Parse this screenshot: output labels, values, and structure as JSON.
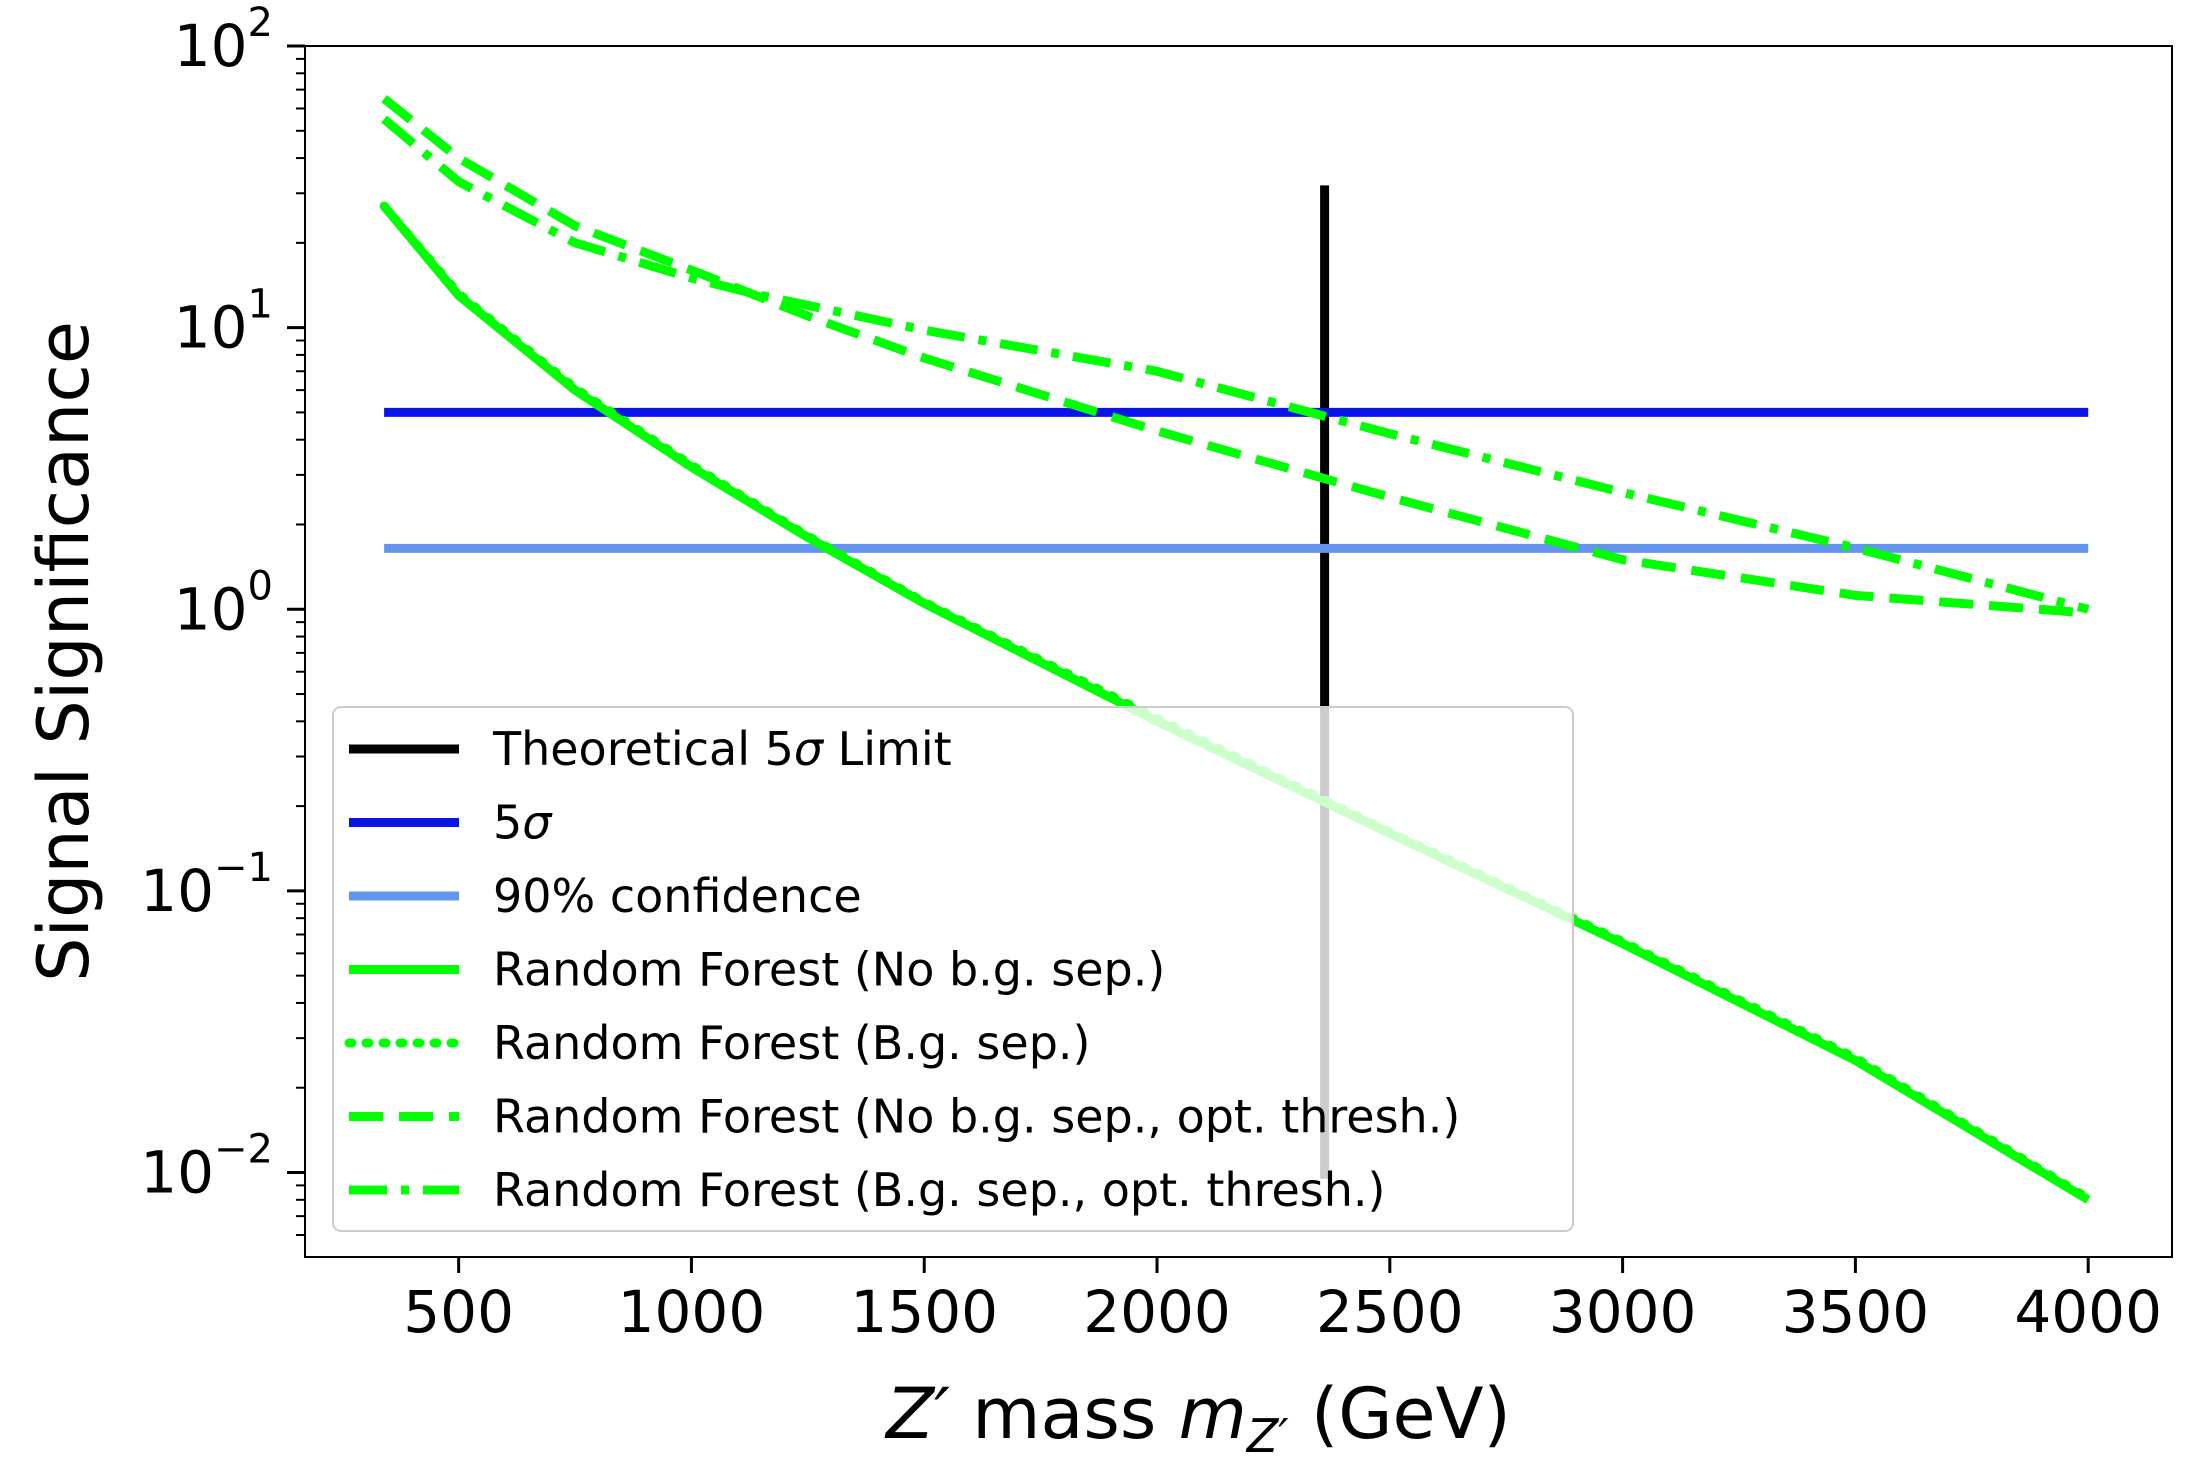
{
  "chart_data": {
    "type": "line",
    "title": "",
    "xlabel_parts": {
      "prefix": "Z′",
      "middle": " mass ",
      "symbol": "m",
      "subscript": "Z′",
      "suffix": " (GeV)"
    },
    "ylabel": "Signal Significance",
    "xlim": [
      170,
      4180
    ],
    "ylim_log10": [
      -2.3,
      2
    ],
    "yscale": "log",
    "xticks": [
      500,
      1000,
      1500,
      2000,
      2500,
      3000,
      3500,
      4000
    ],
    "xtick_labels": [
      "500",
      "1000",
      "1500",
      "2000",
      "2500",
      "3000",
      "3500",
      "4000"
    ],
    "ytick_exponents": [
      -2,
      -1,
      0,
      1,
      2
    ],
    "ytick_base": "10",
    "ytick_sups": [
      "−2",
      "−1",
      "0",
      "1",
      "2"
    ],
    "grid": false,
    "legend_position": "lower-left",
    "series": [
      {
        "name_parts": [
          "Theoretical 5",
          "σ",
          " Limit"
        ],
        "style": "solid",
        "color": "#000000",
        "x": [
          2360,
          2360
        ],
        "y": [
          0.0095,
          32
        ]
      },
      {
        "name_parts": [
          "5",
          "σ",
          ""
        ],
        "style": "solid",
        "color": "#0a14e6",
        "x": [
          340,
          4000
        ],
        "y": [
          5.0,
          5.0
        ]
      },
      {
        "name_parts": [
          "90% confidence",
          "",
          ""
        ],
        "style": "solid",
        "color": "#6495ed",
        "x": [
          340,
          4000
        ],
        "y": [
          1.645,
          1.645
        ]
      },
      {
        "name_parts": [
          "Random Forest (No b.g. sep.)",
          "",
          ""
        ],
        "style": "solid",
        "color": "#00ff00",
        "x": [
          340,
          500,
          750,
          1000,
          1250,
          1500,
          2000,
          2500,
          3000,
          3500,
          4000
        ],
        "y": [
          27,
          13,
          6.0,
          3.2,
          1.8,
          1.05,
          0.4,
          0.16,
          0.065,
          0.025,
          0.008
        ]
      },
      {
        "name_parts": [
          "Random Forest (B.g. sep.)",
          "",
          ""
        ],
        "style": "dotted",
        "color": "#00ff00",
        "x": [
          340,
          500,
          750,
          1000,
          1250,
          1500,
          2000,
          2500,
          3000,
          3500,
          4000
        ],
        "y": [
          27,
          13.2,
          6.1,
          3.25,
          1.82,
          1.06,
          0.41,
          0.162,
          0.066,
          0.0255,
          0.0081
        ]
      },
      {
        "name_parts": [
          "Random Forest (No b.g. sep., opt. thresh.)",
          "",
          ""
        ],
        "style": "dashed",
        "color": "#00ff00",
        "x": [
          340,
          500,
          750,
          1000,
          1250,
          1500,
          2000,
          2500,
          3000,
          3500,
          4000
        ],
        "y": [
          65,
          40,
          23,
          16,
          11,
          7.8,
          4.3,
          2.5,
          1.5,
          1.12,
          0.97
        ]
      },
      {
        "name_parts": [
          "Random Forest (B.g. sep., opt. thresh.)",
          "",
          ""
        ],
        "style": "dashdot",
        "color": "#00ff00",
        "x": [
          340,
          500,
          750,
          1000,
          1150,
          1250,
          1500,
          2000,
          2500,
          3000,
          3500,
          4000
        ],
        "y": [
          55,
          33,
          20,
          15,
          13,
          12,
          9.8,
          7,
          4.2,
          2.6,
          1.65,
          1.0
        ]
      }
    ]
  }
}
